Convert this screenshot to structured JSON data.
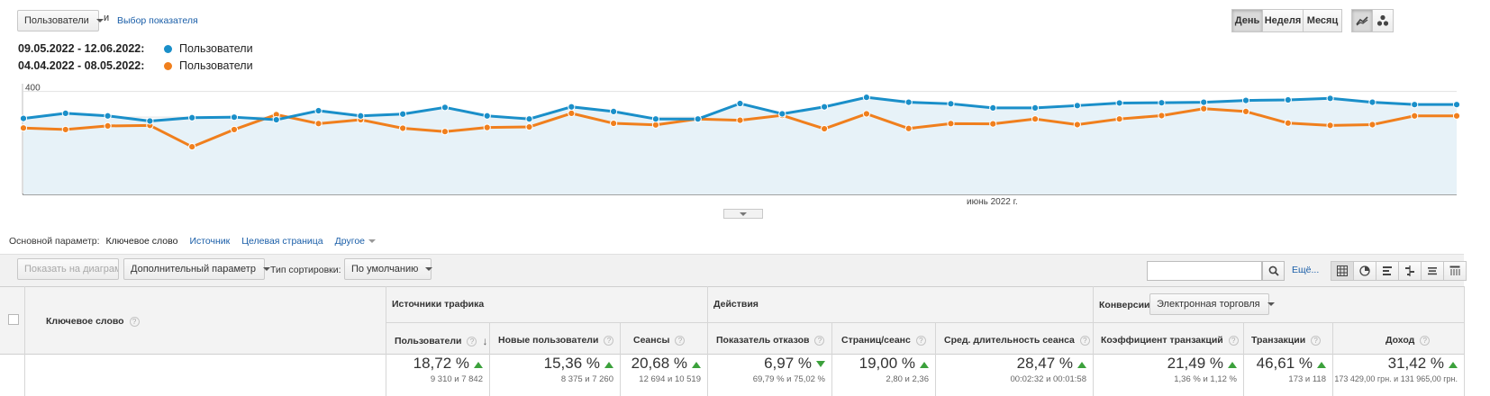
{
  "top_controls": {
    "metric_select": "Пользователи",
    "and_label": "и",
    "choose_metric_link": "Выбор показателя"
  },
  "period_buttons": [
    "День",
    "Неделя",
    "Месяц"
  ],
  "legend": [
    {
      "range": "09.05.2022 - 12.06.2022:",
      "series": "Пользователи",
      "color": "#1a8fc9"
    },
    {
      "range": "04.04.2022 - 08.05.2022:",
      "series": "Пользователи",
      "color": "#f07f1d"
    }
  ],
  "chart_data": {
    "type": "line",
    "y_ticks": [
      "400",
      "200"
    ],
    "ylim": [
      0,
      430
    ],
    "x_axis_label": "июнь 2022 г.",
    "grid": true,
    "legend_position": "top-left",
    "series": [
      {
        "name": "Пользователи",
        "range": "09.05.2022 - 12.06.2022",
        "color": "#1a8fc9",
        "values": [
          295,
          315,
          305,
          285,
          298,
          300,
          290,
          325,
          305,
          312,
          338,
          305,
          293,
          340,
          322,
          293,
          293,
          353,
          313,
          340,
          377,
          358,
          352,
          336,
          336,
          345,
          355,
          356,
          358,
          365,
          367,
          373,
          358,
          349,
          349
        ]
      },
      {
        "name": "Пользователи",
        "range": "04.04.2022 - 08.05.2022",
        "color": "#f07f1d",
        "values": [
          258,
          252,
          266,
          268,
          185,
          252,
          310,
          275,
          290,
          257,
          244,
          260,
          262,
          315,
          276,
          270,
          293,
          288,
          307,
          255,
          313,
          256,
          275,
          274,
          293,
          271,
          293,
          306,
          333,
          322,
          277,
          268,
          271,
          305,
          305
        ]
      }
    ]
  },
  "dimension_bar": {
    "label": "Основной параметр:",
    "active": "Ключевое слово",
    "options": [
      "Источник",
      "Целевая страница"
    ],
    "other": "Другое"
  },
  "toolbar": {
    "show_on_chart": "Показать на диаграмме",
    "secondary_dimension": "Дополнительный параметр",
    "sort_type_label": "Тип сортировки:",
    "sort_type_value": "По умолчанию",
    "more_link": "Ещё..."
  },
  "table": {
    "dimension_header": "Ключевое слово",
    "group_headers": [
      "Источники трафика",
      "Действия",
      "Конверсии"
    ],
    "conversion_select": "Электронная торговля",
    "columns": [
      {
        "label": "Пользователи",
        "value": "18,72 %",
        "sub": "9 310 и 7 842",
        "trend": "up"
      },
      {
        "label": "Новые пользователи",
        "value": "15,36 %",
        "sub": "8 375 и 7 260",
        "trend": "up"
      },
      {
        "label": "Сеансы",
        "value": "20,68 %",
        "sub": "12 694 и 10 519",
        "trend": "up"
      },
      {
        "label": "Показатель отказов",
        "value": "6,97 %",
        "sub": "69,79 % и 75,02 %",
        "trend": "down"
      },
      {
        "label": "Страниц/сеанс",
        "value": "19,00 %",
        "sub": "2,80 и 2,36",
        "trend": "up"
      },
      {
        "label": "Сред. длительность сеанса",
        "value": "28,47 %",
        "sub": "00:02:32 и 00:01:58",
        "trend": "up"
      },
      {
        "label": "Коэффициент транзакций",
        "value": "21,49 %",
        "sub": "1,36 % и 1,12 %",
        "trend": "up"
      },
      {
        "label": "Транзакции",
        "value": "46,61 %",
        "sub": "173 и 118",
        "trend": "up"
      },
      {
        "label": "Доход",
        "value": "31,42 %",
        "sub": "173 429,00 грн. и 131 965,00 грн.",
        "trend": "up"
      }
    ]
  }
}
